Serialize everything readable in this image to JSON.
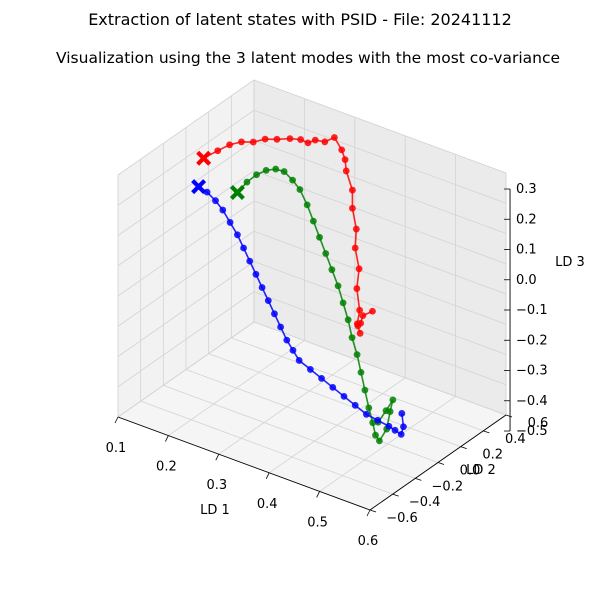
{
  "suptitle": "Extraction of latent states with PSID - File: 20241112",
  "title": "Visualization using the 3 latent modes with the most co-variance",
  "chart_data": {
    "type": "scatter3d",
    "xlabel": "LD 1",
    "ylabel": "LD 2",
    "zlabel": "LD 3",
    "xlim": [
      0.1,
      0.6
    ],
    "ylim": [
      -0.6,
      0.6
    ],
    "zlim": [
      -0.5,
      0.3
    ],
    "xticks": [
      "0.1",
      "0.2",
      "0.3",
      "0.4",
      "0.5",
      "0.6"
    ],
    "yticks": [
      "−0.6",
      "−0.4",
      "−0.2",
      "0.0",
      "0.2",
      "0.4",
      "0.6"
    ],
    "zticks": [
      "−0.5",
      "−0.4",
      "−0.3",
      "−0.2",
      "−0.1",
      "0.0",
      "0.1",
      "0.2",
      "0.3"
    ],
    "grid": true,
    "series": [
      {
        "color": "#ff0000",
        "marker": "o",
        "start_marker": "X",
        "points": [
          [
            0.18,
            -0.2,
            0.3
          ],
          [
            0.19,
            -0.12,
            0.31
          ],
          [
            0.2,
            -0.06,
            0.32
          ],
          [
            0.21,
            0.0,
            0.32
          ],
          [
            0.22,
            0.06,
            0.31
          ],
          [
            0.23,
            0.12,
            0.31
          ],
          [
            0.24,
            0.18,
            0.3
          ],
          [
            0.25,
            0.25,
            0.29
          ],
          [
            0.26,
            0.3,
            0.28
          ],
          [
            0.27,
            0.32,
            0.27
          ],
          [
            0.28,
            0.34,
            0.28
          ],
          [
            0.29,
            0.38,
            0.27
          ],
          [
            0.3,
            0.42,
            0.28
          ],
          [
            0.31,
            0.44,
            0.24
          ],
          [
            0.31,
            0.47,
            0.2
          ],
          [
            0.31,
            0.48,
            0.16
          ],
          [
            0.32,
            0.49,
            0.1
          ],
          [
            0.32,
            0.49,
            0.04
          ],
          [
            0.33,
            0.48,
            -0.02
          ],
          [
            0.33,
            0.47,
            -0.08
          ],
          [
            0.34,
            0.46,
            -0.14
          ],
          [
            0.34,
            0.44,
            -0.2
          ],
          [
            0.35,
            0.42,
            -0.26
          ],
          [
            0.35,
            0.4,
            -0.3
          ],
          [
            0.36,
            0.38,
            -0.32
          ],
          [
            0.36,
            0.36,
            -0.29
          ],
          [
            0.37,
            0.34,
            -0.27
          ],
          [
            0.37,
            0.36,
            -0.25
          ],
          [
            0.38,
            0.4,
            -0.24
          ]
        ]
      },
      {
        "color": "#008000",
        "marker": "o",
        "start_marker": "X",
        "points": [
          [
            0.22,
            -0.08,
            0.18
          ],
          [
            0.23,
            -0.04,
            0.21
          ],
          [
            0.24,
            0.0,
            0.23
          ],
          [
            0.25,
            0.04,
            0.24
          ],
          [
            0.26,
            0.08,
            0.24
          ],
          [
            0.27,
            0.11,
            0.23
          ],
          [
            0.28,
            0.14,
            0.2
          ],
          [
            0.29,
            0.16,
            0.17
          ],
          [
            0.3,
            0.18,
            0.12
          ],
          [
            0.31,
            0.19,
            0.07
          ],
          [
            0.32,
            0.2,
            0.02
          ],
          [
            0.33,
            0.21,
            -0.03
          ],
          [
            0.34,
            0.22,
            -0.08
          ],
          [
            0.35,
            0.23,
            -0.13
          ],
          [
            0.36,
            0.23,
            -0.18
          ],
          [
            0.37,
            0.23,
            -0.23
          ],
          [
            0.38,
            0.22,
            -0.28
          ],
          [
            0.39,
            0.22,
            -0.33
          ],
          [
            0.4,
            0.21,
            -0.38
          ],
          [
            0.41,
            0.2,
            -0.43
          ],
          [
            0.42,
            0.19,
            -0.48
          ],
          [
            0.43,
            0.18,
            -0.52
          ],
          [
            0.44,
            0.16,
            -0.55
          ],
          [
            0.45,
            0.15,
            -0.56
          ],
          [
            0.46,
            0.17,
            -0.52
          ],
          [
            0.46,
            0.2,
            -0.47
          ],
          [
            0.47,
            0.18,
            -0.42
          ],
          [
            0.47,
            0.12,
            -0.44
          ],
          [
            0.47,
            0.05,
            -0.46
          ]
        ]
      },
      {
        "color": "#0000ff",
        "marker": "o",
        "start_marker": "X",
        "points": [
          [
            0.17,
            -0.2,
            0.2
          ],
          [
            0.18,
            -0.17,
            0.18
          ],
          [
            0.19,
            -0.14,
            0.15
          ],
          [
            0.2,
            -0.12,
            0.12
          ],
          [
            0.21,
            -0.1,
            0.08
          ],
          [
            0.22,
            -0.08,
            0.04
          ],
          [
            0.23,
            -0.07,
            0.0
          ],
          [
            0.24,
            -0.06,
            -0.04
          ],
          [
            0.25,
            -0.05,
            -0.08
          ],
          [
            0.26,
            -0.04,
            -0.12
          ],
          [
            0.27,
            -0.03,
            -0.16
          ],
          [
            0.28,
            -0.02,
            -0.2
          ],
          [
            0.29,
            -0.01,
            -0.24
          ],
          [
            0.3,
            0.0,
            -0.28
          ],
          [
            0.31,
            0.01,
            -0.31
          ],
          [
            0.32,
            0.02,
            -0.34
          ],
          [
            0.34,
            0.03,
            -0.36
          ],
          [
            0.36,
            0.04,
            -0.38
          ],
          [
            0.38,
            0.05,
            -0.4
          ],
          [
            0.4,
            0.06,
            -0.42
          ],
          [
            0.42,
            0.07,
            -0.44
          ],
          [
            0.44,
            0.08,
            -0.46
          ],
          [
            0.46,
            0.09,
            -0.47
          ],
          [
            0.48,
            0.1,
            -0.48
          ],
          [
            0.49,
            0.11,
            -0.49
          ],
          [
            0.5,
            0.12,
            -0.5
          ],
          [
            0.5,
            0.14,
            -0.48
          ],
          [
            0.49,
            0.17,
            -0.45
          ]
        ]
      }
    ]
  }
}
